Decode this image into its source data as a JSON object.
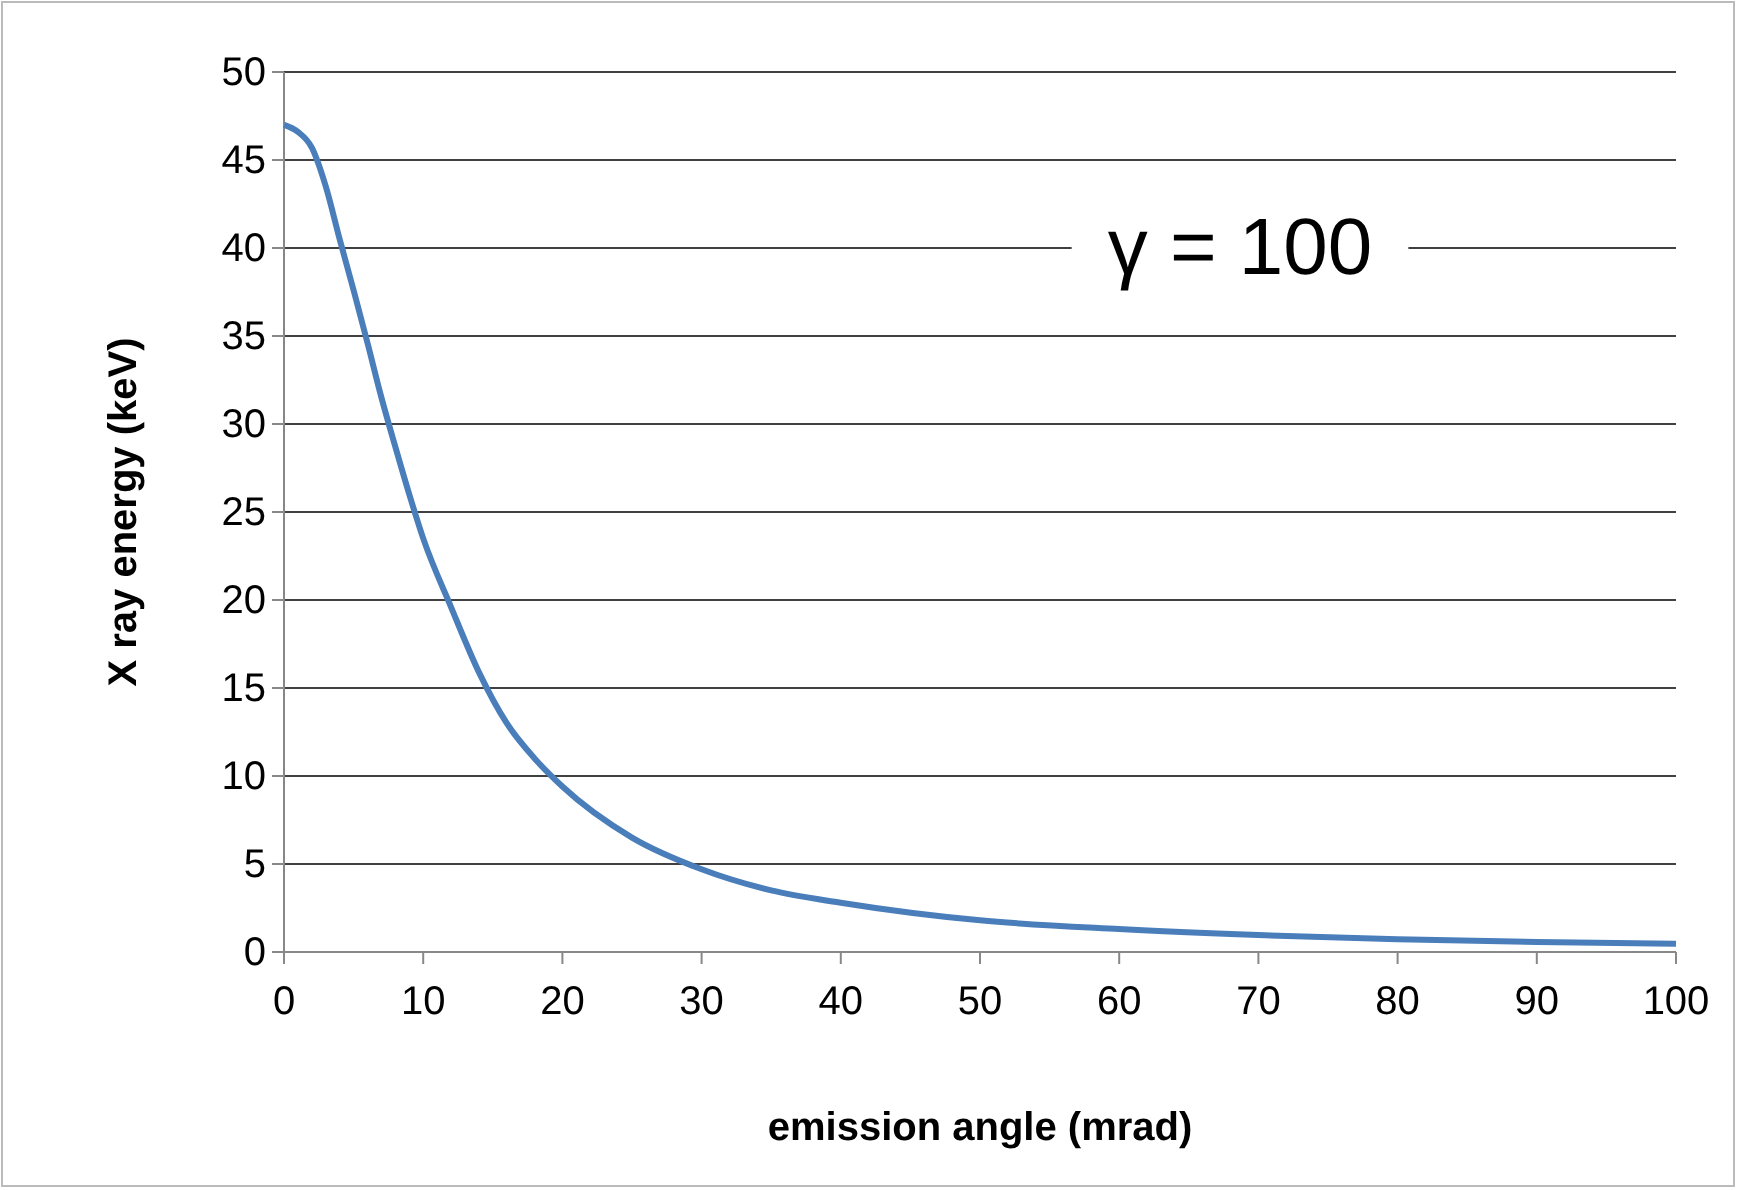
{
  "chart_data": {
    "type": "line",
    "xlabel": "emission angle  (mrad)",
    "ylabel": "X ray energy (keV)",
    "annotations": [
      "γ = 100"
    ],
    "xlim": [
      0,
      100
    ],
    "xticks": [
      0,
      10,
      20,
      30,
      40,
      50,
      60,
      70,
      80,
      90,
      100
    ],
    "ylim": [
      0,
      50
    ],
    "yticks": [
      0,
      5,
      10,
      15,
      20,
      25,
      30,
      35,
      40,
      45,
      50
    ],
    "grid": "y",
    "marker": "none",
    "line_style": "solid",
    "series": [
      {
        "color": "#4a7ebb",
        "x": [
          0,
          1,
          2,
          3,
          4,
          5,
          6,
          7,
          8,
          9,
          10,
          12,
          14,
          16,
          18,
          20,
          25,
          30,
          35,
          40,
          50,
          60,
          70,
          80,
          90,
          100
        ],
        "values": [
          47,
          46.6,
          45.7,
          43.5,
          40.5,
          37.6,
          34.6,
          31.5,
          28.7,
          26,
          23.5,
          19.6,
          15.9,
          13,
          11,
          9.4,
          6.5,
          4.7,
          3.5,
          2.8,
          1.8,
          1.3,
          0.96,
          0.72,
          0.57,
          0.47
        ]
      }
    ]
  }
}
